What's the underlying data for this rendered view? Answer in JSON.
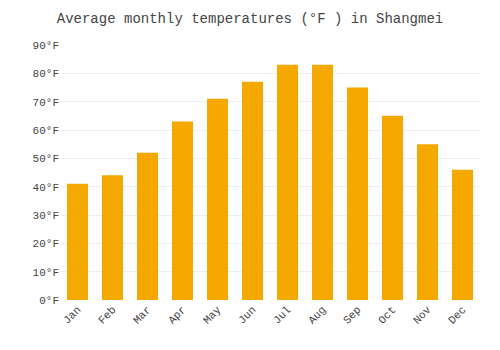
{
  "chart_data": {
    "type": "bar",
    "title": "Average monthly temperatures (°F ) in Shangmei",
    "categories": [
      "Jan",
      "Feb",
      "Mar",
      "Apr",
      "May",
      "Jun",
      "Jul",
      "Aug",
      "Sep",
      "Oct",
      "Nov",
      "Dec"
    ],
    "values": [
      41,
      44,
      52,
      63,
      71,
      77,
      83,
      83,
      75,
      65,
      55,
      46
    ],
    "color": "#F5A800",
    "ylim": [
      0,
      90
    ],
    "yticks": [
      {
        "value": 0,
        "label": "0°F"
      },
      {
        "value": 10,
        "label": "10°F"
      },
      {
        "value": 20,
        "label": "20°F"
      },
      {
        "value": 30,
        "label": "30°F"
      },
      {
        "value": 40,
        "label": "40°F"
      },
      {
        "value": 50,
        "label": "50°F"
      },
      {
        "value": 60,
        "label": "60°F"
      },
      {
        "value": 70,
        "label": "70°F"
      },
      {
        "value": 80,
        "label": "80°F"
      },
      {
        "value": 90,
        "label": "90°F"
      }
    ],
    "grid": true
  }
}
